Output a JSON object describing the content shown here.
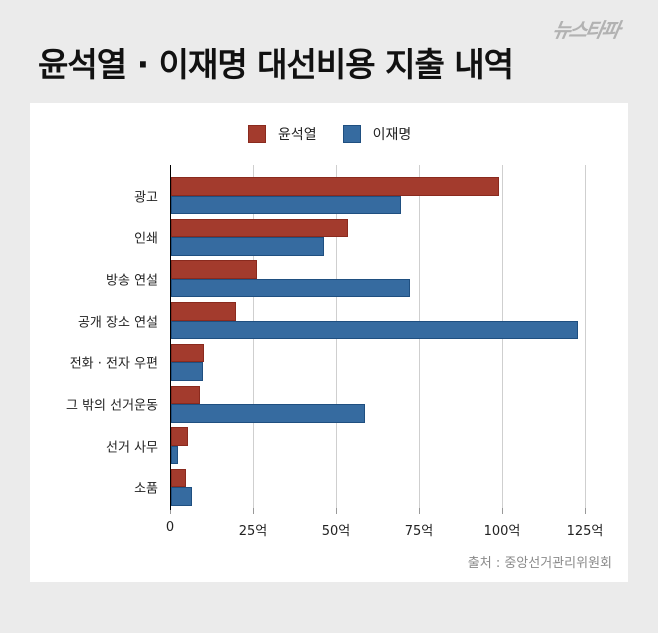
{
  "header": {
    "title": "윤석열 · 이재명 대선비용 지출 내역",
    "logo": "뉴스타파"
  },
  "legend": [
    {
      "label": "윤석열",
      "color": "#a33b2d"
    },
    {
      "label": "이재명",
      "color": "#366ba0"
    }
  ],
  "source": "출처 : 중앙선거관리위원회",
  "chart_data": {
    "type": "bar",
    "orientation": "horizontal",
    "title": "윤석열 · 이재명 대선비용 지출 내역",
    "xlabel": "",
    "ylabel": "",
    "unit": "억",
    "xlim": [
      0,
      125
    ],
    "x_ticks": [
      "0",
      "25억",
      "50억",
      "75억",
      "100억",
      "125억"
    ],
    "grid": true,
    "legend_position": "top",
    "categories": [
      "광고",
      "인쇄",
      "방송 연설",
      "공개 장소 연설",
      "전화 · 전자 우편",
      "그 밖의 선거운동",
      "선거 사무",
      "소품"
    ],
    "series": [
      {
        "name": "윤석열",
        "color": "#a33b2d",
        "values": [
          98.8,
          53.3,
          25.8,
          19.5,
          10.0,
          8.7,
          5.0,
          4.4
        ]
      },
      {
        "name": "이재명",
        "color": "#366ba0",
        "values": [
          69.2,
          46.0,
          72.0,
          122.7,
          9.7,
          58.4,
          2.1,
          6.3
        ]
      }
    ],
    "source": "출처 : 중앙선거관리위원회"
  }
}
